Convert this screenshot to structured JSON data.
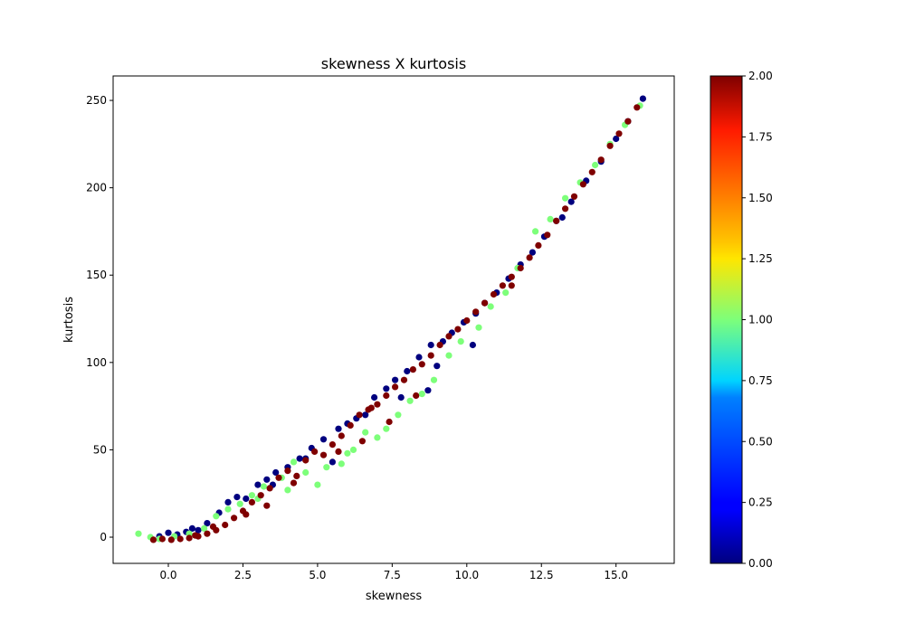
{
  "chart_data": {
    "type": "scatter",
    "title": "skewness X kurtosis",
    "xlabel": "skewness",
    "ylabel": "kurtosis",
    "xlim": [
      -1.85,
      16.95
    ],
    "ylim": [
      -15,
      264
    ],
    "xticks": [
      0.0,
      2.5,
      5.0,
      7.5,
      10.0,
      12.5,
      15.0
    ],
    "xtick_labels": [
      "0.0",
      "2.5",
      "5.0",
      "7.5",
      "10.0",
      "12.5",
      "15.0"
    ],
    "yticks": [
      0,
      50,
      100,
      150,
      200,
      250
    ],
    "ytick_labels": [
      "0",
      "50",
      "100",
      "150",
      "200",
      "250"
    ],
    "grid": false,
    "colormap": "jet",
    "colorbar": {
      "range": [
        0.0,
        2.0
      ],
      "ticks": [
        0.0,
        0.25,
        0.5,
        0.75,
        1.0,
        1.25,
        1.5,
        1.75,
        2.0
      ],
      "tick_labels": [
        "0.00",
        "0.25",
        "0.50",
        "0.75",
        "1.00",
        "1.25",
        "1.50",
        "1.75",
        "2.00"
      ]
    },
    "series": [
      {
        "class_value": 0,
        "color": "#00007f",
        "points": [
          [
            -0.3,
            0.5
          ],
          [
            0.0,
            2.5
          ],
          [
            0.3,
            1.5
          ],
          [
            0.6,
            3.0
          ],
          [
            0.8,
            5.0
          ],
          [
            1.0,
            4.0
          ],
          [
            1.3,
            8.0
          ],
          [
            1.7,
            14.0
          ],
          [
            2.0,
            20.0
          ],
          [
            2.3,
            23.0
          ],
          [
            2.6,
            22.0
          ],
          [
            3.0,
            30.0
          ],
          [
            3.3,
            33.0
          ],
          [
            3.6,
            37.0
          ],
          [
            4.0,
            40.0
          ],
          [
            4.4,
            45.0
          ],
          [
            4.8,
            51.0
          ],
          [
            5.2,
            56.0
          ],
          [
            5.5,
            43.0
          ],
          [
            5.7,
            62.0
          ],
          [
            6.0,
            65.0
          ],
          [
            6.3,
            68.0
          ],
          [
            6.6,
            70.0
          ],
          [
            6.9,
            80.0
          ],
          [
            7.3,
            85.0
          ],
          [
            7.6,
            90.0
          ],
          [
            8.0,
            95.0
          ],
          [
            8.4,
            103.0
          ],
          [
            8.7,
            84.0
          ],
          [
            8.8,
            110.0
          ],
          [
            9.2,
            112.0
          ],
          [
            9.5,
            117.0
          ],
          [
            9.9,
            123.0
          ],
          [
            10.2,
            110.0
          ],
          [
            10.3,
            128.0
          ],
          [
            10.6,
            134.0
          ],
          [
            11.0,
            140.0
          ],
          [
            11.4,
            148.0
          ],
          [
            11.8,
            156.0
          ],
          [
            12.2,
            163.0
          ],
          [
            12.6,
            172.0
          ],
          [
            13.0,
            181.0
          ],
          [
            13.2,
            183.0
          ],
          [
            13.5,
            192.0
          ],
          [
            14.0,
            204.0
          ],
          [
            14.5,
            215.0
          ],
          [
            15.0,
            228.0
          ],
          [
            15.4,
            238.0
          ],
          [
            15.9,
            251.0
          ],
          [
            9.0,
            98.0
          ],
          [
            7.8,
            80.0
          ],
          [
            4.6,
            45.0
          ],
          [
            3.5,
            30.0
          ]
        ]
      },
      {
        "class_value": 1,
        "color": "#7dff7a",
        "points": [
          [
            -1.0,
            2.0
          ],
          [
            -0.6,
            0.0
          ],
          [
            -0.3,
            -1.0
          ],
          [
            0.2,
            0.5
          ],
          [
            0.7,
            2.0
          ],
          [
            1.2,
            5.0
          ],
          [
            1.6,
            12.0
          ],
          [
            2.0,
            16.0
          ],
          [
            2.4,
            19.0
          ],
          [
            2.8,
            24.0
          ],
          [
            3.2,
            29.0
          ],
          [
            3.8,
            34.0
          ],
          [
            4.2,
            43.0
          ],
          [
            4.6,
            37.0
          ],
          [
            5.0,
            30.0
          ],
          [
            5.3,
            40.0
          ],
          [
            5.8,
            42.0
          ],
          [
            6.2,
            50.0
          ],
          [
            6.6,
            60.0
          ],
          [
            7.0,
            57.0
          ],
          [
            7.3,
            62.0
          ],
          [
            7.7,
            70.0
          ],
          [
            8.1,
            78.0
          ],
          [
            8.5,
            82.0
          ],
          [
            8.9,
            90.0
          ],
          [
            9.4,
            104.0
          ],
          [
            9.8,
            112.0
          ],
          [
            10.4,
            120.0
          ],
          [
            10.8,
            132.0
          ],
          [
            11.3,
            140.0
          ],
          [
            11.7,
            154.0
          ],
          [
            12.3,
            175.0
          ],
          [
            12.8,
            182.0
          ],
          [
            13.3,
            194.0
          ],
          [
            13.8,
            203.0
          ],
          [
            14.3,
            213.0
          ],
          [
            14.8,
            225.0
          ],
          [
            15.3,
            236.0
          ],
          [
            15.8,
            247.0
          ],
          [
            3.0,
            22.0
          ],
          [
            4.0,
            27.0
          ],
          [
            6.0,
            48.0
          ]
        ]
      },
      {
        "class_value": 2,
        "color": "#7f0000",
        "points": [
          [
            -0.5,
            -1.5
          ],
          [
            -0.2,
            -1.0
          ],
          [
            0.1,
            -1.5
          ],
          [
            0.4,
            -1.0
          ],
          [
            0.7,
            -0.5
          ],
          [
            1.0,
            0.5
          ],
          [
            1.3,
            2.0
          ],
          [
            1.6,
            4.0
          ],
          [
            1.9,
            7.0
          ],
          [
            2.2,
            11.0
          ],
          [
            2.5,
            15.0
          ],
          [
            2.8,
            20.0
          ],
          [
            3.1,
            24.0
          ],
          [
            3.4,
            28.0
          ],
          [
            3.7,
            34.0
          ],
          [
            4.0,
            38.0
          ],
          [
            4.3,
            35.0
          ],
          [
            4.6,
            44.0
          ],
          [
            4.9,
            49.0
          ],
          [
            5.2,
            47.0
          ],
          [
            5.5,
            53.0
          ],
          [
            5.8,
            58.0
          ],
          [
            6.1,
            64.0
          ],
          [
            6.4,
            70.0
          ],
          [
            6.7,
            73.0
          ],
          [
            7.0,
            76.0
          ],
          [
            7.3,
            81.0
          ],
          [
            7.6,
            86.0
          ],
          [
            7.9,
            90.0
          ],
          [
            8.2,
            96.0
          ],
          [
            8.5,
            99.0
          ],
          [
            8.8,
            104.0
          ],
          [
            9.1,
            110.0
          ],
          [
            9.4,
            115.0
          ],
          [
            9.7,
            119.0
          ],
          [
            10.0,
            124.0
          ],
          [
            10.3,
            129.0
          ],
          [
            10.6,
            134.0
          ],
          [
            10.9,
            139.0
          ],
          [
            11.2,
            144.0
          ],
          [
            11.5,
            149.0
          ],
          [
            11.8,
            154.0
          ],
          [
            12.1,
            160.0
          ],
          [
            12.4,
            167.0
          ],
          [
            12.7,
            173.0
          ],
          [
            13.0,
            181.0
          ],
          [
            13.3,
            188.0
          ],
          [
            13.6,
            195.0
          ],
          [
            13.9,
            202.0
          ],
          [
            14.2,
            209.0
          ],
          [
            14.5,
            216.0
          ],
          [
            14.8,
            224.0
          ],
          [
            15.1,
            231.0
          ],
          [
            15.4,
            238.0
          ],
          [
            15.7,
            246.0
          ],
          [
            2.6,
            13.0
          ],
          [
            3.3,
            18.0
          ],
          [
            4.2,
            31.0
          ],
          [
            5.7,
            49.0
          ],
          [
            6.5,
            55.0
          ],
          [
            7.4,
            66.0
          ],
          [
            8.3,
            81.0
          ],
          [
            11.5,
            144.0
          ],
          [
            6.8,
            74.0
          ],
          [
            1.5,
            6.0
          ],
          [
            0.9,
            1.0
          ]
        ]
      }
    ]
  }
}
